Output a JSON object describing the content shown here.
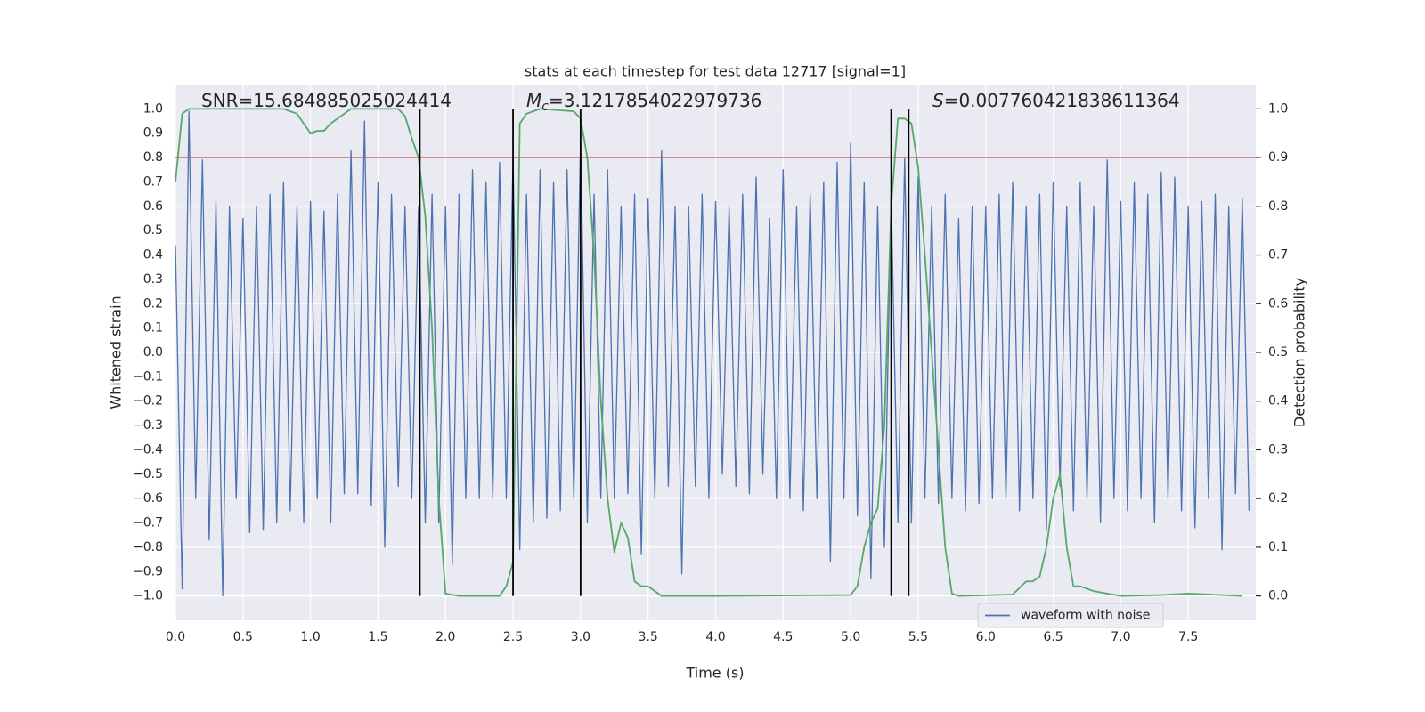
{
  "chart_data": {
    "type": "line",
    "title": "stats at each timestep for test data 12717 [signal=1]",
    "xlabel": "Time (s)",
    "ylabel": "Whitened strain",
    "y2label": "Detection probability",
    "xlim": [
      0,
      8.0
    ],
    "ylim": [
      -1.1,
      1.1
    ],
    "y2lim": [
      -0.05,
      1.05
    ],
    "xticks": [
      {
        "value": 0,
        "label": "0.0"
      },
      {
        "value": 0.5,
        "label": "0.5"
      },
      {
        "value": 1,
        "label": "1.0"
      },
      {
        "value": 1.5,
        "label": "1.5"
      },
      {
        "value": 2,
        "label": "2.0"
      },
      {
        "value": 2.5,
        "label": "2.5"
      },
      {
        "value": 3,
        "label": "3.0"
      },
      {
        "value": 3.5,
        "label": "3.5"
      },
      {
        "value": 4,
        "label": "4.0"
      },
      {
        "value": 4.5,
        "label": "4.5"
      },
      {
        "value": 5,
        "label": "5.0"
      },
      {
        "value": 5.5,
        "label": "5.5"
      },
      {
        "value": 6,
        "label": "6.0"
      },
      {
        "value": 6.5,
        "label": "6.5"
      },
      {
        "value": 7,
        "label": "7.0"
      },
      {
        "value": 7.5,
        "label": "7.5"
      }
    ],
    "yticks": [
      {
        "value": -1,
        "label": "−1.0"
      },
      {
        "value": -0.9,
        "label": "−0.9"
      },
      {
        "value": -0.8,
        "label": "−0.8"
      },
      {
        "value": -0.7,
        "label": "−0.7"
      },
      {
        "value": -0.6,
        "label": "−0.6"
      },
      {
        "value": -0.5,
        "label": "−0.5"
      },
      {
        "value": -0.4,
        "label": "−0.4"
      },
      {
        "value": -0.3,
        "label": "−0.3"
      },
      {
        "value": -0.2,
        "label": "−0.2"
      },
      {
        "value": -0.1,
        "label": "−0.1"
      },
      {
        "value": 0,
        "label": "0.0"
      },
      {
        "value": 0.1,
        "label": "0.1"
      },
      {
        "value": 0.2,
        "label": "0.2"
      },
      {
        "value": 0.3,
        "label": "0.3"
      },
      {
        "value": 0.4,
        "label": "0.4"
      },
      {
        "value": 0.5,
        "label": "0.5"
      },
      {
        "value": 0.6,
        "label": "0.6"
      },
      {
        "value": 0.7,
        "label": "0.7"
      },
      {
        "value": 0.8,
        "label": "0.8"
      },
      {
        "value": 0.9,
        "label": "0.9"
      },
      {
        "value": 1,
        "label": "1.0"
      }
    ],
    "y2ticks": [
      {
        "value": 0,
        "label": "0.0"
      },
      {
        "value": 0.1,
        "label": "0.1"
      },
      {
        "value": 0.2,
        "label": "0.2"
      },
      {
        "value": 0.3,
        "label": "0.3"
      },
      {
        "value": 0.4,
        "label": "0.4"
      },
      {
        "value": 0.5,
        "label": "0.5"
      },
      {
        "value": 0.6,
        "label": "0.6"
      },
      {
        "value": 0.7,
        "label": "0.7"
      },
      {
        "value": 0.8,
        "label": "0.8"
      },
      {
        "value": 0.9,
        "label": "0.9"
      },
      {
        "value": 1,
        "label": "1.0"
      }
    ],
    "grid": true,
    "legend": "lower right",
    "annotations": [
      {
        "text": "SNR=15.684885025024414"
      },
      {
        "symbol": "M",
        "subscript": "c",
        "text": "=3.1217854022979736"
      },
      {
        "symbol": "S",
        "text": "=0.007760421838611364"
      }
    ],
    "hline": {
      "value": 0.8,
      "color": "#c44e52"
    },
    "vlines": {
      "values": [
        1.81,
        2.5,
        3.0,
        5.3,
        5.43
      ],
      "color": "#000000",
      "ymin": -1.0,
      "ymax": 1.0
    },
    "series": [
      {
        "name": "waveform with noise",
        "color": "#4c72b0",
        "x": [
          0,
          0.05,
          0.1,
          0.15,
          0.2,
          0.25,
          0.3,
          0.35,
          0.4,
          0.45,
          0.5,
          0.55,
          0.6,
          0.65,
          0.7,
          0.75,
          0.8,
          0.85,
          0.9,
          0.95,
          1,
          1.05,
          1.1,
          1.15,
          1.2,
          1.25,
          1.3,
          1.35,
          1.4,
          1.45,
          1.5,
          1.55,
          1.6,
          1.65,
          1.7,
          1.75,
          1.8,
          1.85,
          1.9,
          1.95,
          2,
          2.05,
          2.1,
          2.15,
          2.2,
          2.25,
          2.3,
          2.35,
          2.4,
          2.45,
          2.5,
          2.55,
          2.6,
          2.65,
          2.7,
          2.75,
          2.8,
          2.85,
          2.9,
          2.95,
          3,
          3.05,
          3.1,
          3.15,
          3.2,
          3.25,
          3.3,
          3.35,
          3.4,
          3.45,
          3.5,
          3.55,
          3.6,
          3.65,
          3.7,
          3.75,
          3.8,
          3.85,
          3.9,
          3.95,
          4,
          4.05,
          4.1,
          4.15,
          4.2,
          4.25,
          4.3,
          4.35,
          4.4,
          4.45,
          4.5,
          4.55,
          4.6,
          4.65,
          4.7,
          4.75,
          4.8,
          4.85,
          4.9,
          4.95,
          5,
          5.05,
          5.1,
          5.15,
          5.2,
          5.25,
          5.3,
          5.35,
          5.4,
          5.45,
          5.5,
          5.55,
          5.6,
          5.65,
          5.7,
          5.75,
          5.8,
          5.85,
          5.9,
          5.95,
          6,
          6.05,
          6.1,
          6.15,
          6.2,
          6.25,
          6.3,
          6.35,
          6.4,
          6.45,
          6.5,
          6.55,
          6.6,
          6.65,
          6.7,
          6.75,
          6.8,
          6.85,
          6.9,
          6.95,
          7,
          7.05,
          7.1,
          7.15,
          7.2,
          7.25,
          7.3,
          7.35,
          7.4,
          7.45,
          7.5,
          7.55,
          7.6,
          7.65,
          7.7,
          7.75,
          7.8,
          7.85,
          7.9,
          7.95
        ],
        "values": [
          0.44,
          -0.97,
          0.99,
          -0.6,
          0.79,
          -0.77,
          0.62,
          -1.0,
          0.6,
          -0.6,
          0.55,
          -0.74,
          0.6,
          -0.73,
          0.65,
          -0.7,
          0.7,
          -0.65,
          0.6,
          -0.7,
          0.62,
          -0.6,
          0.58,
          -0.7,
          0.65,
          -0.58,
          0.83,
          -0.58,
          0.95,
          -0.63,
          0.7,
          -0.8,
          0.65,
          -0.55,
          0.6,
          -0.6,
          0.6,
          -0.7,
          0.65,
          -0.7,
          0.6,
          -0.87,
          0.65,
          -0.6,
          0.75,
          -0.6,
          0.7,
          -0.6,
          0.78,
          -0.6,
          0.8,
          -0.81,
          0.65,
          -0.7,
          0.75,
          -0.68,
          0.7,
          -0.65,
          0.75,
          -0.6,
          0.88,
          -0.7,
          0.65,
          -0.6,
          0.75,
          -0.6,
          0.6,
          -0.58,
          0.65,
          -0.83,
          0.63,
          -0.6,
          0.83,
          -0.55,
          0.6,
          -0.91,
          0.6,
          -0.55,
          0.65,
          -0.6,
          0.62,
          -0.5,
          0.6,
          -0.55,
          0.65,
          -0.58,
          0.72,
          -0.5,
          0.55,
          -0.6,
          0.75,
          -0.6,
          0.6,
          -0.65,
          0.65,
          -0.6,
          0.7,
          -0.86,
          0.78,
          -0.6,
          0.86,
          -0.67,
          0.7,
          -0.93,
          0.6,
          -0.8,
          0.65,
          -0.7,
          0.8,
          -0.7,
          0.72,
          -0.6,
          0.6,
          -0.62,
          0.65,
          -0.6,
          0.55,
          -0.65,
          0.6,
          -0.62,
          0.6,
          -0.6,
          0.65,
          -0.6,
          0.7,
          -0.65,
          0.6,
          -0.6,
          0.65,
          -0.73,
          0.7,
          -0.55,
          0.6,
          -0.65,
          0.7,
          -0.6,
          0.6,
          -0.7,
          0.79,
          -0.6,
          0.62,
          -0.65,
          0.7,
          -0.6,
          0.65,
          -0.7,
          0.74,
          -0.6,
          0.72,
          -0.65,
          0.6,
          -0.72,
          0.62,
          -0.6,
          0.65,
          -0.81,
          0.6,
          -0.58,
          0.63,
          -0.65
        ]
      },
      {
        "color": "#55a868",
        "axis": "y2",
        "x": [
          0,
          0.05,
          0.1,
          0.8,
          0.9,
          1.0,
          1.05,
          1.1,
          1.15,
          1.3,
          1.65,
          1.7,
          1.75,
          1.8,
          1.85,
          1.9,
          1.95,
          2.0,
          2.1,
          2.4,
          2.45,
          2.5,
          2.55,
          2.6,
          2.7,
          2.95,
          3.0,
          3.05,
          3.1,
          3.15,
          3.2,
          3.25,
          3.3,
          3.35,
          3.4,
          3.45,
          3.5,
          3.55,
          3.6,
          4.0,
          5.0,
          5.05,
          5.1,
          5.15,
          5.2,
          5.25,
          5.3,
          5.35,
          5.4,
          5.45,
          5.5,
          5.55,
          5.6,
          5.65,
          5.7,
          5.75,
          5.8,
          6.2,
          6.3,
          6.35,
          6.4,
          6.45,
          6.5,
          6.55,
          6.6,
          6.65,
          6.7,
          6.8,
          7.0,
          7.3,
          7.5,
          7.9
        ],
        "values": [
          0.85,
          0.99,
          1.0,
          1.0,
          0.99,
          0.95,
          0.955,
          0.955,
          0.97,
          1.0,
          1.0,
          0.985,
          0.94,
          0.9,
          0.78,
          0.55,
          0.2,
          0.005,
          0.0,
          0.0,
          0.02,
          0.07,
          0.97,
          0.99,
          1.0,
          0.995,
          0.98,
          0.9,
          0.7,
          0.4,
          0.2,
          0.09,
          0.15,
          0.12,
          0.03,
          0.02,
          0.02,
          0.01,
          0.0,
          0.0,
          0.002,
          0.02,
          0.1,
          0.15,
          0.18,
          0.35,
          0.8,
          0.98,
          0.98,
          0.97,
          0.88,
          0.7,
          0.5,
          0.3,
          0.1,
          0.005,
          0.0,
          0.003,
          0.03,
          0.03,
          0.04,
          0.1,
          0.2,
          0.25,
          0.1,
          0.02,
          0.02,
          0.01,
          0.0,
          0.002,
          0.005,
          0.0
        ]
      }
    ]
  }
}
